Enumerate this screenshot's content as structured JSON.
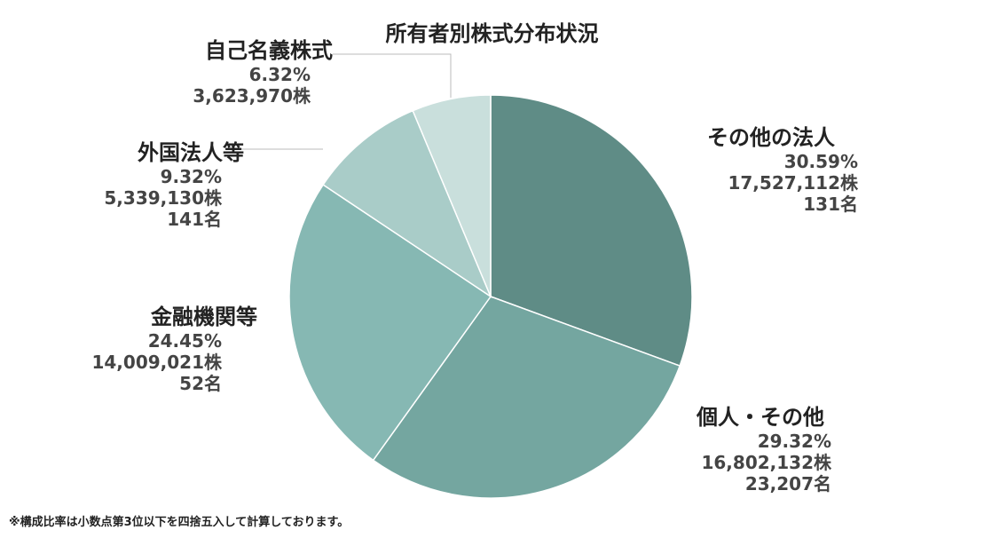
{
  "chart_data": {
    "type": "pie",
    "title": "所有者別株式分布状況",
    "slices": [
      {
        "label": "その他の法人",
        "percent": 30.59,
        "percent_label": "30.59%",
        "shares_label": "17,527,112株",
        "holders_label": "131名",
        "color": "#5f8c86"
      },
      {
        "label": "個人・その他",
        "percent": 29.32,
        "percent_label": "29.32%",
        "shares_label": "16,802,132株",
        "holders_label": "23,207名",
        "color": "#74a6a0"
      },
      {
        "label": "金融機関等",
        "percent": 24.45,
        "percent_label": "24.45%",
        "shares_label": "14,009,021株",
        "holders_label": "52名",
        "color": "#86b8b3"
      },
      {
        "label": "外国法人等",
        "percent": 9.32,
        "percent_label": "9.32%",
        "shares_label": "5,339,130株",
        "holders_label": "141名",
        "color": "#a9ccc8"
      },
      {
        "label": "自己名義株式",
        "percent": 6.32,
        "percent_label": "6.32%",
        "shares_label": "3,623,970株",
        "holders_label": "",
        "color": "#c9dfdc"
      }
    ],
    "start_angle": "top, clockwise"
  },
  "note": "※構成比率は小数点第3位以下を四捨五入して計算しております。"
}
